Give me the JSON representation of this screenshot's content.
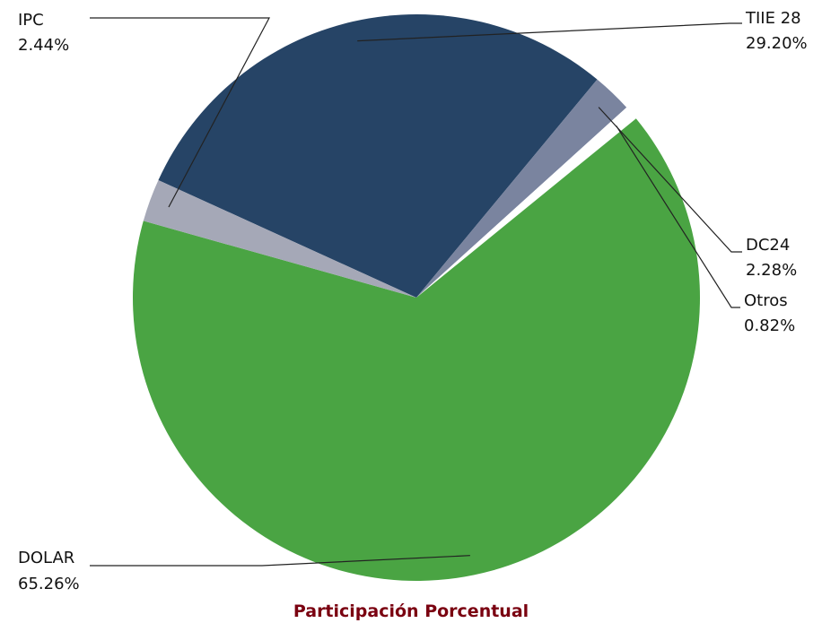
{
  "chart_data": {
    "type": "pie",
    "title": "Participación Porcentual",
    "slices": [
      {
        "label": "TIIE 28",
        "value": 29.2,
        "value_label": "29.20%",
        "color": "#264466"
      },
      {
        "label": "DC24",
        "value": 2.28,
        "value_label": "2.28%",
        "color": "#7a849f"
      },
      {
        "label": "Otros",
        "value": 0.82,
        "value_label": "0.82%",
        "color": "#ffffff"
      },
      {
        "label": "DOLAR",
        "value": 65.26,
        "value_label": "65.26%",
        "color": "#4aa443"
      },
      {
        "label": "IPC",
        "value": 2.44,
        "value_label": "2.44%",
        "color": "#a5a8b7"
      }
    ],
    "legend": "none",
    "grid": false
  }
}
